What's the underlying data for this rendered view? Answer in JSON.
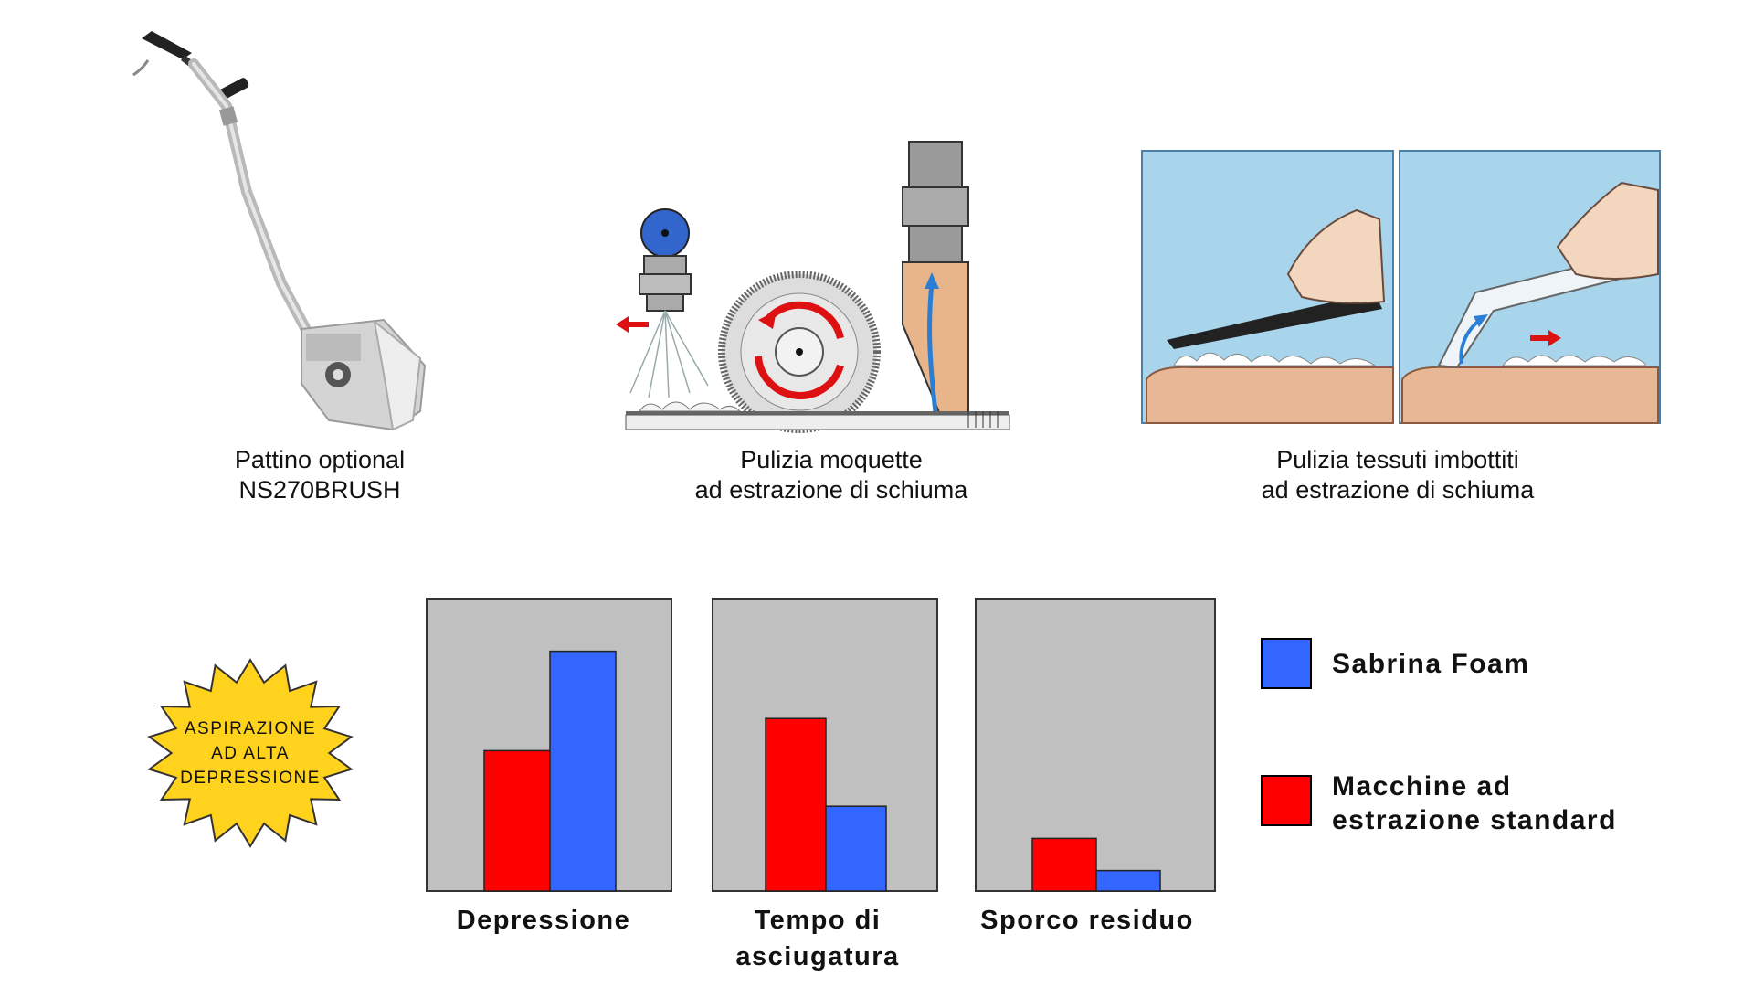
{
  "captions": {
    "pattino": [
      "Pattino optional",
      "NS270BRUSH"
    ],
    "moquette": [
      "Pulizia moquette",
      "ad estrazione di schiuma"
    ],
    "tessuti": [
      "Pulizia tessuti imbottiti",
      "ad estrazione di schiuma"
    ]
  },
  "badge": [
    "ASPIRAZIONE",
    "AD ALTA",
    "DEPRESSIONE"
  ],
  "legend": {
    "sabrina": {
      "label": "Sabrina Foam",
      "color": "#3366ff"
    },
    "standard": {
      "label_lines": [
        "Macchine ad",
        "estrazione standard"
      ],
      "color": "#ff0000"
    }
  },
  "colors": {
    "panel_bg": "#c0c0c0",
    "badge_fill": "#ffd21e",
    "sky": "#a8d4ec",
    "cushion": "#e8b896"
  },
  "chart_data": [
    {
      "type": "bar",
      "xlabel_lines": [
        "Depressione"
      ],
      "categories": [
        "Depressione"
      ],
      "ylim": [
        0,
        100
      ],
      "series": [
        {
          "name": "Macchine ad estrazione standard",
          "color": "#ff0000",
          "values": [
            48
          ]
        },
        {
          "name": "Sabrina Foam",
          "color": "#3366ff",
          "values": [
            82
          ]
        }
      ]
    },
    {
      "type": "bar",
      "xlabel_lines": [
        "Tempo di",
        "asciugatura"
      ],
      "categories": [
        "Tempo di asciugatura"
      ],
      "ylim": [
        0,
        100
      ],
      "series": [
        {
          "name": "Macchine ad estrazione standard",
          "color": "#ff0000",
          "values": [
            59
          ]
        },
        {
          "name": "Sabrina Foam",
          "color": "#3366ff",
          "values": [
            29
          ]
        }
      ]
    },
    {
      "type": "bar",
      "xlabel_lines": [
        "Sporco residuo"
      ],
      "categories": [
        "Sporco residuo"
      ],
      "ylim": [
        0,
        100
      ],
      "series": [
        {
          "name": "Macchine ad estrazione standard",
          "color": "#ff0000",
          "values": [
            18
          ]
        },
        {
          "name": "Sabrina Foam",
          "color": "#3366ff",
          "values": [
            7
          ]
        }
      ]
    }
  ]
}
